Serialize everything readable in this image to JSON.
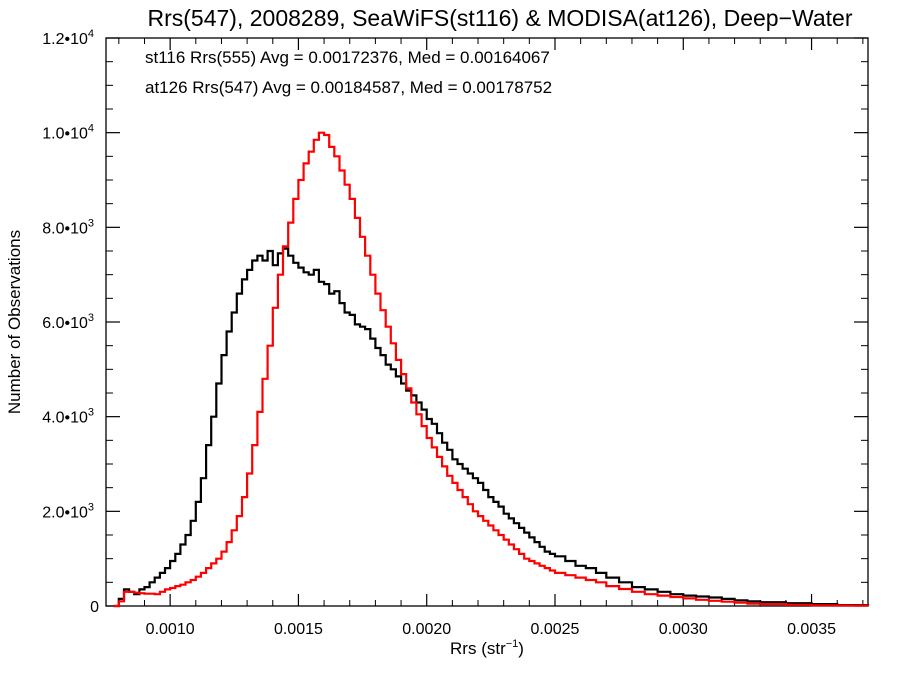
{
  "chart_data": {
    "type": "line",
    "title": "Rrs(547), 2008289, SeaWiFS(st116) & MODISA(at126), Deep−Water",
    "xlabel": "Rrs (str",
    "xlabel_sup": "−1",
    "xlabel_close": ")",
    "ylabel": "Number of Observations",
    "xlim": [
      0.00075,
      0.00372
    ],
    "ylim": [
      0,
      12000
    ],
    "xticks": [
      {
        "value": 0.001,
        "label": "0.0010"
      },
      {
        "value": 0.0015,
        "label": "0.0015"
      },
      {
        "value": 0.002,
        "label": "0.0020"
      },
      {
        "value": 0.0025,
        "label": "0.0025"
      },
      {
        "value": 0.003,
        "label": "0.0030"
      },
      {
        "value": 0.0035,
        "label": "0.0035"
      }
    ],
    "yticks": [
      {
        "value": 0,
        "label": "0",
        "exp": ""
      },
      {
        "value": 2000,
        "label": "2.0•10",
        "exp": "3"
      },
      {
        "value": 4000,
        "label": "4.0•10",
        "exp": "3"
      },
      {
        "value": 6000,
        "label": "6.0•10",
        "exp": "3"
      },
      {
        "value": 8000,
        "label": "8.0•10",
        "exp": "3"
      },
      {
        "value": 10000,
        "label": "1.0•10",
        "exp": "4"
      },
      {
        "value": 12000,
        "label": "1.2•10",
        "exp": "4"
      }
    ],
    "grid": false,
    "series": [
      {
        "name": "st116 Rrs(555) Avg = 0.00172376, Med = 0.00164067",
        "color": "#000000",
        "x": [
          0.00078,
          0.0008,
          0.00082,
          0.00084,
          0.00086,
          0.00088,
          0.0009,
          0.00092,
          0.00094,
          0.00096,
          0.00098,
          0.001,
          0.00102,
          0.00104,
          0.00106,
          0.00108,
          0.0011,
          0.00112,
          0.00114,
          0.00116,
          0.00118,
          0.0012,
          0.00122,
          0.00124,
          0.00126,
          0.00128,
          0.0013,
          0.00132,
          0.00134,
          0.00136,
          0.00138,
          0.0014,
          0.00142,
          0.00144,
          0.00146,
          0.00148,
          0.0015,
          0.00152,
          0.00154,
          0.00156,
          0.00158,
          0.0016,
          0.00162,
          0.00164,
          0.00166,
          0.00168,
          0.0017,
          0.00172,
          0.00174,
          0.00176,
          0.00178,
          0.0018,
          0.00182,
          0.00184,
          0.00186,
          0.00188,
          0.0019,
          0.00192,
          0.00194,
          0.00196,
          0.00198,
          0.002,
          0.00202,
          0.00204,
          0.00206,
          0.00208,
          0.0021,
          0.00212,
          0.00214,
          0.00216,
          0.00218,
          0.0022,
          0.00222,
          0.00224,
          0.00226,
          0.00228,
          0.0023,
          0.00232,
          0.00234,
          0.00236,
          0.00238,
          0.0024,
          0.00242,
          0.00244,
          0.00246,
          0.00248,
          0.0025,
          0.00254,
          0.00258,
          0.00262,
          0.00266,
          0.0027,
          0.00275,
          0.0028,
          0.00285,
          0.0029,
          0.00295,
          0.003,
          0.00305,
          0.0031,
          0.00315,
          0.0032,
          0.00325,
          0.0033,
          0.0034,
          0.0035,
          0.0036,
          0.00372
        ],
        "y": [
          0,
          150,
          350,
          300,
          250,
          350,
          400,
          500,
          600,
          700,
          800,
          950,
          1100,
          1300,
          1500,
          1800,
          2200,
          2700,
          3400,
          4000,
          4700,
          5300,
          5800,
          6200,
          6600,
          6900,
          7100,
          7300,
          7400,
          7300,
          7500,
          7200,
          7450,
          7550,
          7400,
          7250,
          7150,
          7050,
          7000,
          7100,
          6850,
          6800,
          6600,
          6650,
          6400,
          6200,
          6150,
          5950,
          5900,
          5850,
          5650,
          5450,
          5300,
          5100,
          5000,
          4850,
          4700,
          4550,
          4450,
          4300,
          4150,
          3950,
          3850,
          3650,
          3450,
          3300,
          3100,
          3000,
          2900,
          2800,
          2700,
          2600,
          2450,
          2300,
          2200,
          2100,
          1950,
          1850,
          1750,
          1650,
          1550,
          1450,
          1350,
          1250,
          1150,
          1100,
          1050,
          950,
          850,
          800,
          700,
          600,
          500,
          400,
          350,
          300,
          250,
          220,
          200,
          180,
          150,
          120,
          100,
          80,
          60,
          40,
          20,
          10
        ]
      },
      {
        "name": "at126 Rrs(547) Avg = 0.00184587, Med = 0.00178752",
        "color": "#ff0000",
        "x": [
          0.00078,
          0.0008,
          0.00082,
          0.00084,
          0.00086,
          0.00088,
          0.0009,
          0.00092,
          0.00094,
          0.00096,
          0.00098,
          0.001,
          0.00102,
          0.00104,
          0.00106,
          0.00108,
          0.0011,
          0.00112,
          0.00114,
          0.00116,
          0.00118,
          0.0012,
          0.00122,
          0.00124,
          0.00126,
          0.00128,
          0.0013,
          0.00132,
          0.00134,
          0.00136,
          0.00138,
          0.0014,
          0.00142,
          0.00144,
          0.00146,
          0.00148,
          0.0015,
          0.00152,
          0.00154,
          0.00156,
          0.00158,
          0.0016,
          0.00162,
          0.00164,
          0.00166,
          0.00168,
          0.0017,
          0.00172,
          0.00174,
          0.00176,
          0.00178,
          0.0018,
          0.00182,
          0.00184,
          0.00186,
          0.00188,
          0.0019,
          0.00192,
          0.00194,
          0.00196,
          0.00198,
          0.002,
          0.00202,
          0.00204,
          0.00206,
          0.00208,
          0.0021,
          0.00212,
          0.00214,
          0.00216,
          0.00218,
          0.0022,
          0.00222,
          0.00224,
          0.00226,
          0.00228,
          0.0023,
          0.00232,
          0.00234,
          0.00236,
          0.00238,
          0.0024,
          0.00242,
          0.00244,
          0.00246,
          0.00248,
          0.0025,
          0.00254,
          0.00258,
          0.00262,
          0.00266,
          0.0027,
          0.00275,
          0.0028,
          0.00285,
          0.0029,
          0.00295,
          0.003,
          0.00305,
          0.0031,
          0.00315,
          0.0032,
          0.00325,
          0.0033,
          0.0034,
          0.0035,
          0.0036,
          0.00372
        ],
        "y": [
          0,
          100,
          300,
          300,
          280,
          270,
          260,
          260,
          250,
          300,
          350,
          380,
          420,
          450,
          500,
          550,
          620,
          700,
          800,
          900,
          1000,
          1150,
          1350,
          1600,
          1900,
          2300,
          2800,
          3400,
          4100,
          4800,
          5500,
          6300,
          7000,
          7600,
          8100,
          8600,
          9000,
          9350,
          9600,
          9850,
          10000,
          9950,
          9700,
          9500,
          9200,
          8900,
          8600,
          8200,
          7800,
          7400,
          7000,
          6600,
          6250,
          5900,
          5550,
          5200,
          4900,
          4600,
          4300,
          4050,
          3800,
          3550,
          3350,
          3150,
          2950,
          2750,
          2600,
          2450,
          2300,
          2150,
          2000,
          1900,
          1800,
          1700,
          1600,
          1500,
          1400,
          1300,
          1200,
          1100,
          1000,
          950,
          900,
          850,
          800,
          750,
          700,
          650,
          600,
          550,
          500,
          420,
          360,
          300,
          250,
          220,
          190,
          160,
          130,
          110,
          90,
          70,
          50,
          40,
          25,
          15,
          10,
          5
        ]
      }
    ]
  }
}
